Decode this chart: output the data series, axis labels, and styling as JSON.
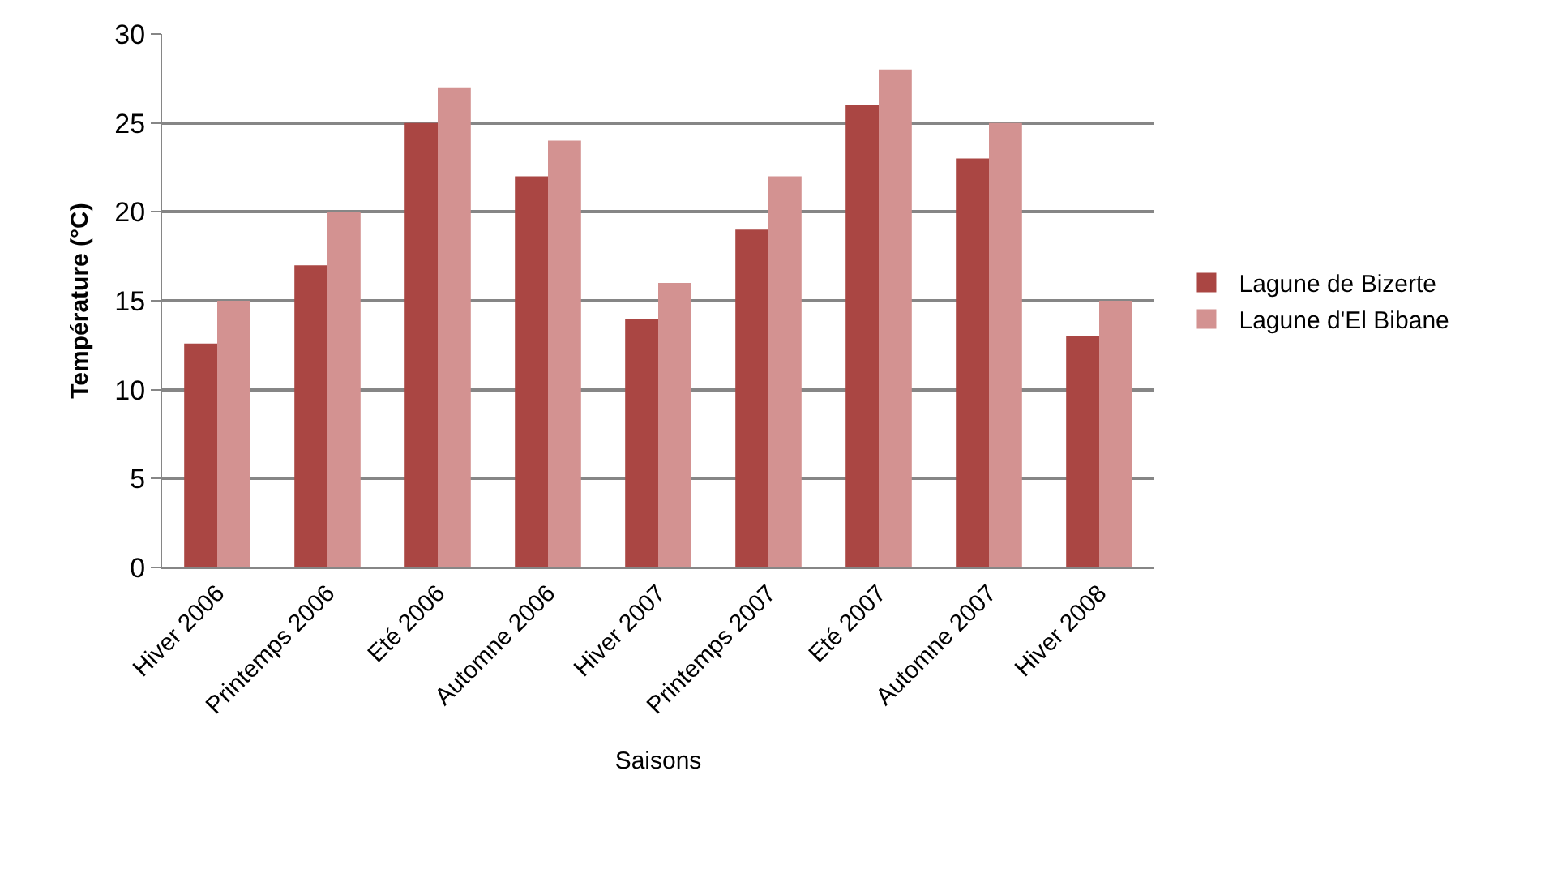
{
  "chart_data": {
    "type": "bar",
    "xlabel": "Saisons",
    "ylabel": "Température (°C)",
    "categories": [
      "Hiver 2006",
      "Printemps 2006",
      "Eté 2006",
      "Automne 2006",
      "Hiver 2007",
      "Printemps 2007",
      "Eté 2007",
      "Automne 2007",
      "Hiver 2008"
    ],
    "series": [
      {
        "name": "Lagune de Bizerte",
        "color": "#aa4643",
        "values": [
          12.6,
          17,
          25,
          22,
          14,
          19,
          26,
          23,
          13
        ]
      },
      {
        "name": "Lagune d'El Bibane",
        "color": "#d39291",
        "values": [
          15,
          20,
          27,
          24,
          16,
          22,
          28,
          25,
          15
        ]
      }
    ],
    "ylim": [
      0,
      30
    ],
    "yticks": [
      0,
      5,
      10,
      15,
      20,
      25,
      30
    ],
    "grid": "y",
    "legend": "right"
  }
}
